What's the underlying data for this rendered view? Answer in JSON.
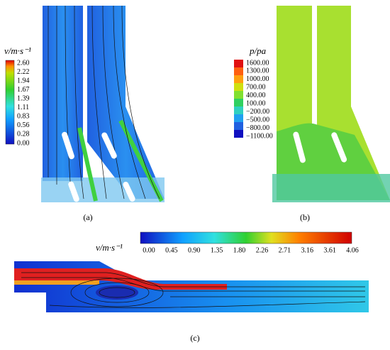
{
  "panels": [
    {
      "label": "(a)",
      "colorbar": {
        "title": "v/m·s⁻¹",
        "ticks": [
          "2.60",
          "2.22",
          "1.94",
          "1.67",
          "1.39",
          "1.11",
          "0.83",
          "0.56",
          "0.28",
          "0.00"
        ]
      }
    },
    {
      "label": "(b)",
      "colorbar": {
        "title": "p/pa",
        "ticks": [
          "1600.00",
          "1300.00",
          "1000.00",
          "700.00",
          "400.00",
          "100.00",
          "−200.00",
          "−500.00",
          "−800.00",
          "−1100.00"
        ]
      }
    },
    {
      "label": "(c)",
      "colorbar": {
        "title": "v/m·s⁻¹",
        "ticks": [
          "0.00",
          "0.45",
          "0.90",
          "1.35",
          "1.80",
          "2.26",
          "2.71",
          "3.16",
          "3.61",
          "4.06"
        ]
      }
    }
  ]
}
